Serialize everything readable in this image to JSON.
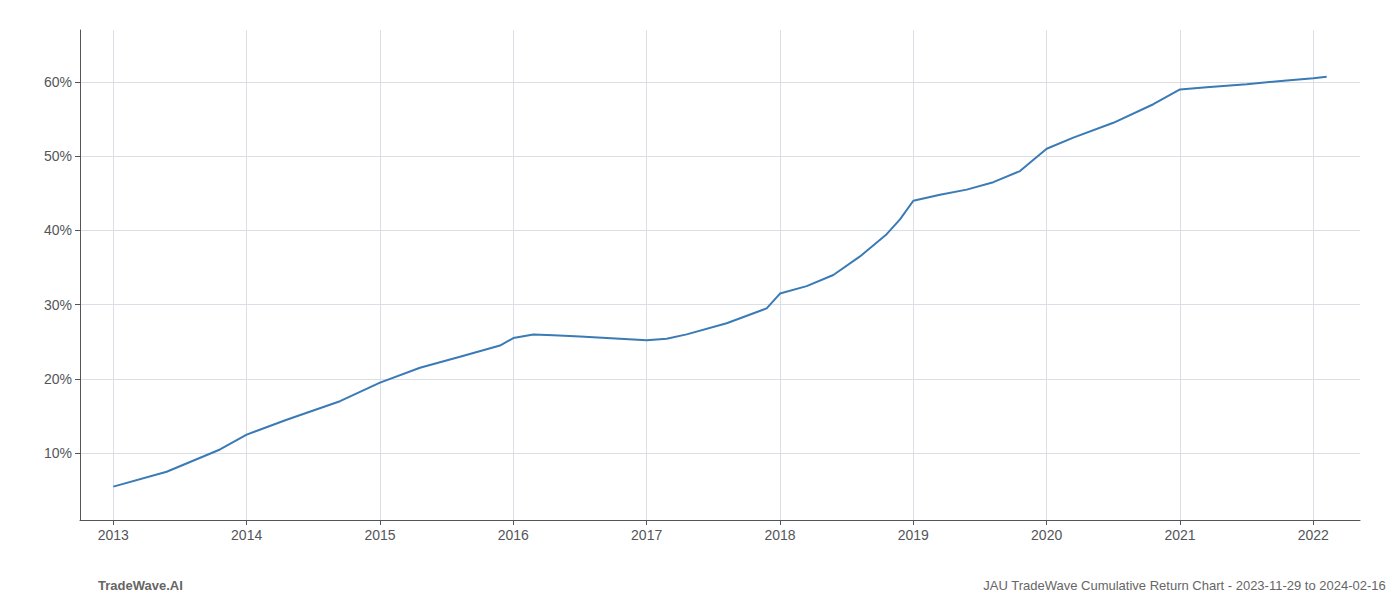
{
  "chart_data": {
    "type": "line",
    "x": [
      2013.0,
      2013.4,
      2013.8,
      2014.0,
      2014.3,
      2014.7,
      2015.0,
      2015.3,
      2015.6,
      2015.9,
      2016.0,
      2016.15,
      2016.3,
      2016.5,
      2016.7,
      2016.9,
      2017.0,
      2017.15,
      2017.3,
      2017.6,
      2017.9,
      2018.0,
      2018.2,
      2018.4,
      2018.6,
      2018.8,
      2018.9,
      2019.0,
      2019.2,
      2019.4,
      2019.6,
      2019.8,
      2020.0,
      2020.2,
      2020.5,
      2020.8,
      2021.0,
      2021.2,
      2021.5,
      2021.8,
      2022.0,
      2022.1
    ],
    "values": [
      5.5,
      7.5,
      10.5,
      12.5,
      14.5,
      17.0,
      19.5,
      21.5,
      23.0,
      24.5,
      25.5,
      26.0,
      25.9,
      25.7,
      25.5,
      25.3,
      25.2,
      25.4,
      26.0,
      27.5,
      29.5,
      31.5,
      32.5,
      34.0,
      36.5,
      39.5,
      41.5,
      44.0,
      44.8,
      45.5,
      46.5,
      48.0,
      51.0,
      52.5,
      54.5,
      57.0,
      59.0,
      59.3,
      59.7,
      60.2,
      60.5,
      60.7
    ],
    "color": "#3a7ab5",
    "xlim": [
      2012.75,
      2022.35
    ],
    "xticks": [
      2013,
      2014,
      2015,
      2016,
      2017,
      2018,
      2019,
      2020,
      2021,
      2022
    ],
    "ylim": [
      1,
      67
    ],
    "yticks": [
      {
        "value": 10,
        "label": "10%"
      },
      {
        "value": 20,
        "label": "20%"
      },
      {
        "value": 30,
        "label": "30%"
      },
      {
        "value": 40,
        "label": "40%"
      },
      {
        "value": 50,
        "label": "50%"
      },
      {
        "value": 60,
        "label": "60%"
      }
    ],
    "grid": true,
    "annotations": [
      "TradeWave.AI",
      "JAU TradeWave Cumulative Return Chart - 2023-11-29 to 2024-02-16"
    ]
  }
}
